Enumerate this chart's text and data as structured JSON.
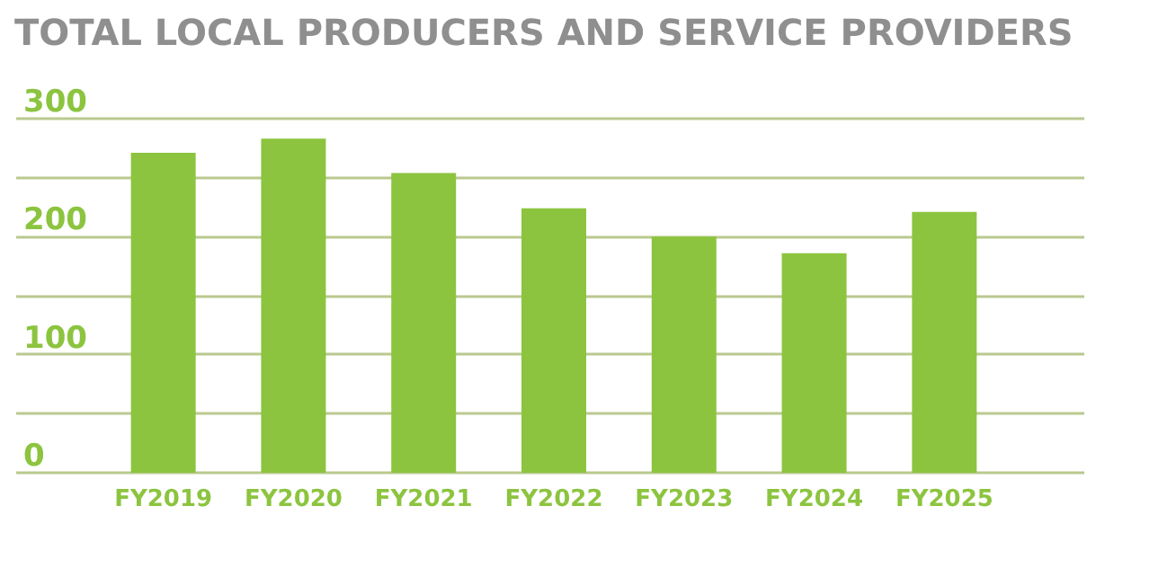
{
  "chart_data": {
    "type": "bar",
    "title": "TOTAL LOCAL PRODUCERS AND SERVICE PROVIDERS",
    "categories": [
      "FY2019",
      "FY2020",
      "FY2021",
      "FY2022",
      "FY2023",
      "FY2024",
      "FY2025"
    ],
    "values": [
      271,
      283,
      254,
      224,
      200,
      186,
      221
    ],
    "color": "#8cc43f",
    "ylim": [
      0,
      300
    ],
    "yticks": [
      0,
      {
        "value": 50,
        "label": null
      },
      100,
      {
        "value": 150,
        "label": null
      },
      200,
      {
        "value": 250,
        "label": null
      },
      300
    ],
    "grid": "y"
  }
}
